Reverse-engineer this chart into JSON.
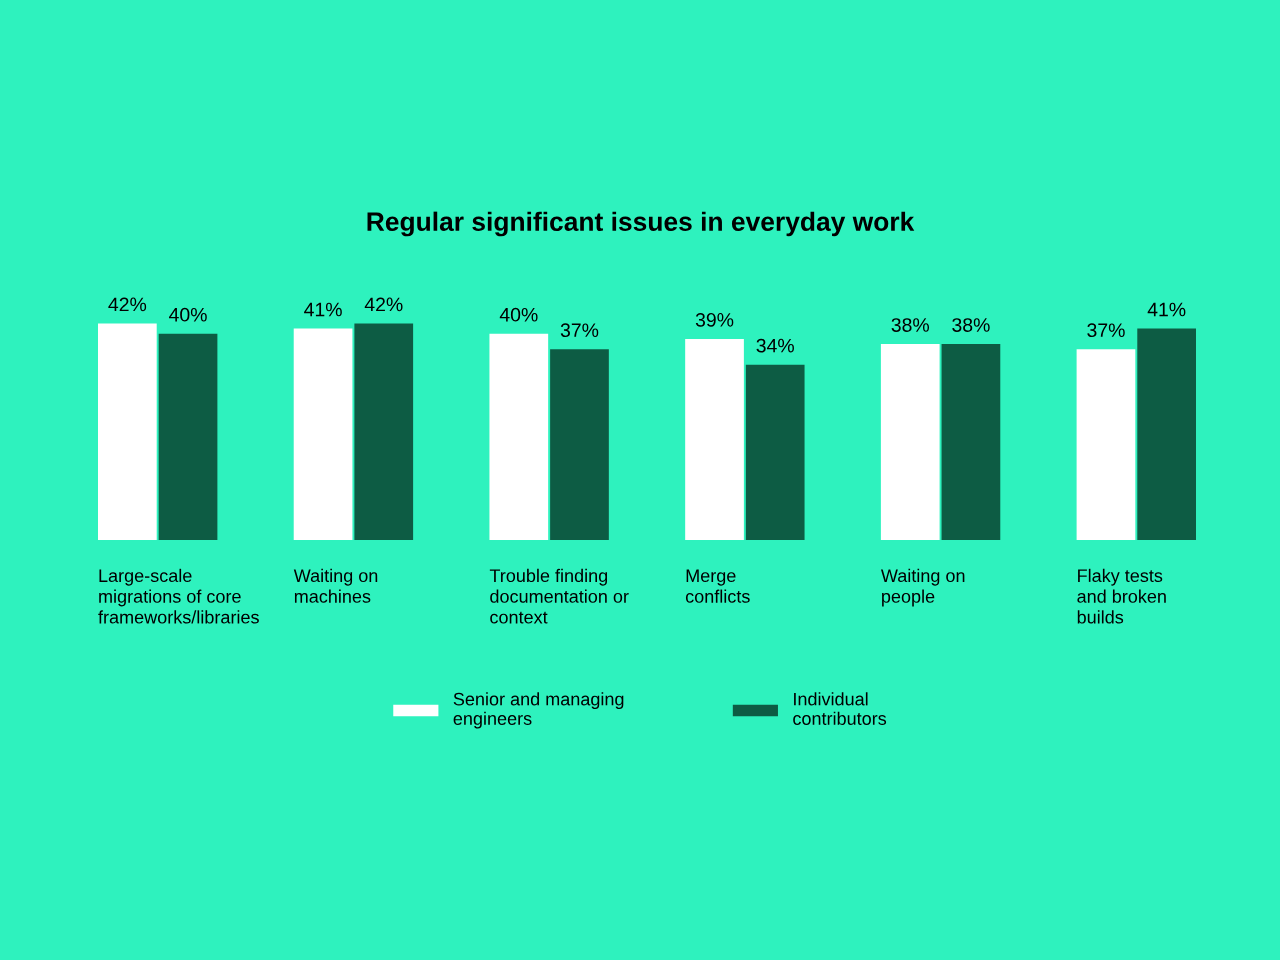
{
  "chart_data": {
    "type": "bar",
    "title": "Regular significant issues in everyday work",
    "categories": [
      "Large-scale\nmigrations of core\nframeworks/libraries",
      "Waiting on\nmachines",
      "Trouble finding\ndocumentation or\ncontext",
      "Merge\nconflicts",
      "Waiting on\npeople",
      "Flaky tests\nand broken\nbuilds"
    ],
    "series": [
      {
        "name": "Senior and managing\nengineers",
        "color": "#ffffff",
        "values": [
          42,
          41,
          40,
          39,
          38,
          37
        ],
        "value_labels": [
          "42%",
          "41%",
          "40%",
          "39%",
          "38%",
          "37%"
        ]
      },
      {
        "name": "Individual\ncontributors",
        "color": "#0d5c44",
        "values": [
          40,
          42,
          37,
          34,
          38,
          41
        ],
        "value_labels": [
          "40%",
          "42%",
          "37%",
          "34%",
          "38%",
          "41%"
        ]
      }
    ],
    "legend": "bottom"
  }
}
